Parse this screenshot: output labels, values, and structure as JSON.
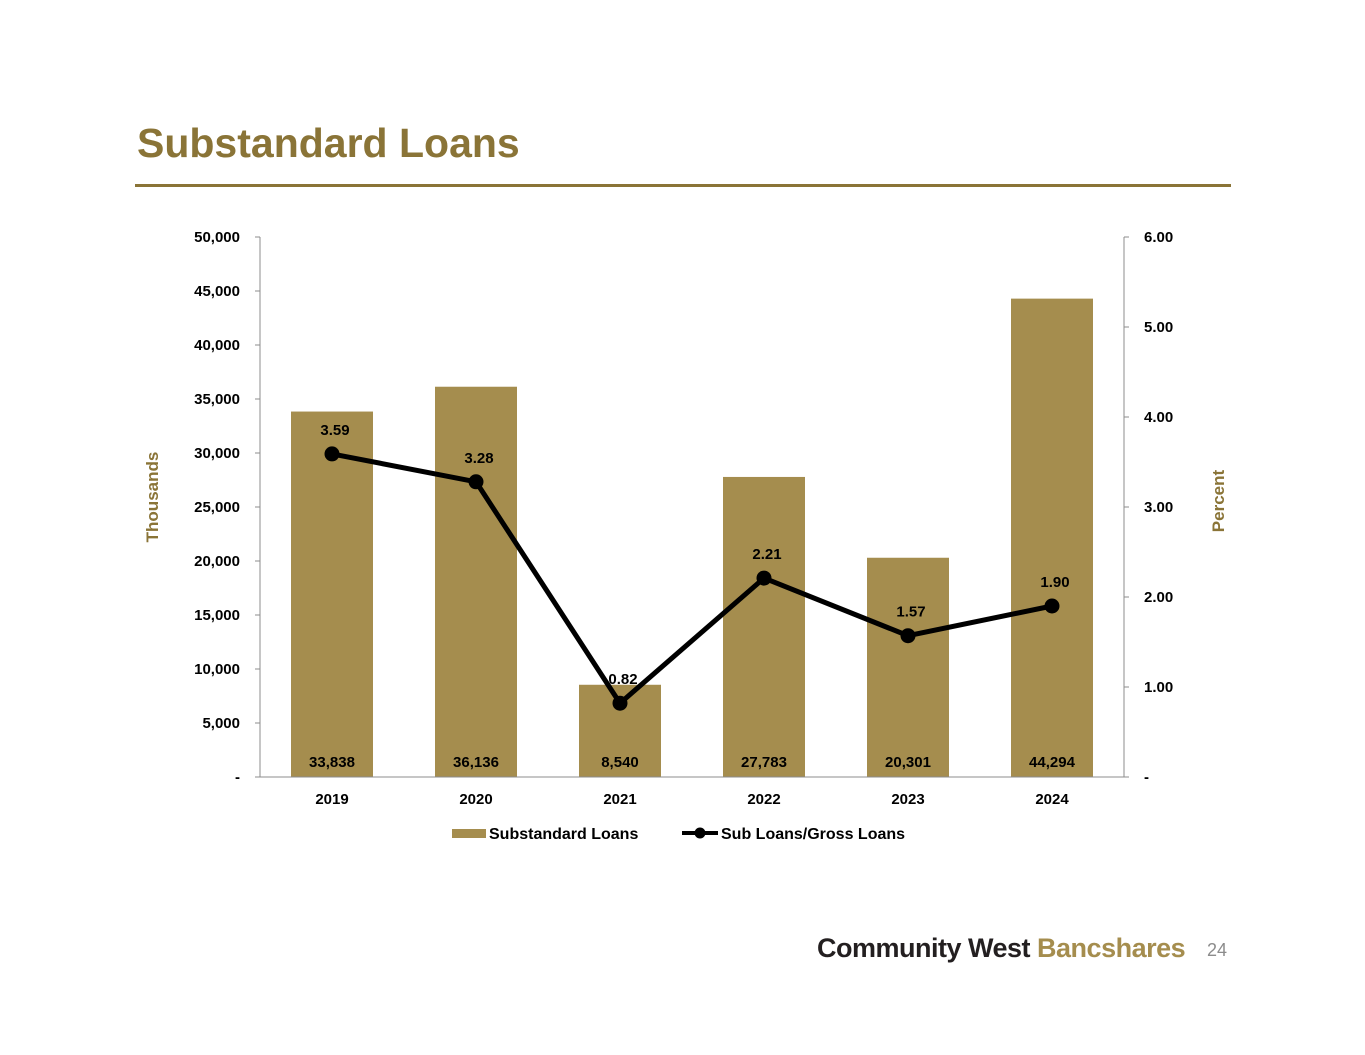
{
  "slide": {
    "title": "Substandard Loans",
    "page_number": "24",
    "logo_text_dark": "Community West",
    "logo_text_gold": "Bancshares"
  },
  "colors": {
    "bar": "#a58d4e",
    "line": "#000000",
    "title": "#8a7437",
    "axis_title": "#8a7437",
    "text": "#000000"
  },
  "chart_data": {
    "type": "bar",
    "categories": [
      "2019",
      "2020",
      "2021",
      "2022",
      "2023",
      "2024"
    ],
    "series": [
      {
        "name": "Substandard Loans",
        "type": "bar",
        "axis": "left",
        "values": [
          33838,
          36136,
          8540,
          27783,
          20301,
          44294
        ],
        "labels": [
          "33,838",
          "36,136",
          "8,540",
          "27,783",
          "20,301",
          "44,294"
        ]
      },
      {
        "name": "Sub Loans/Gross Loans",
        "type": "line",
        "axis": "right",
        "values": [
          3.59,
          3.28,
          0.82,
          2.21,
          1.57,
          1.9
        ],
        "labels": [
          "3.59",
          "3.28",
          "0.82",
          "2.21",
          "1.57",
          "1.90"
        ]
      }
    ],
    "ylabel": "Thousands",
    "y2label": "Percent",
    "ylim": [
      0,
      50000
    ],
    "y2lim": [
      0,
      6
    ],
    "yticks": [
      0,
      5000,
      10000,
      15000,
      20000,
      25000,
      30000,
      35000,
      40000,
      45000,
      50000
    ],
    "ytick_labels": [
      "-",
      "5,000",
      "10,000",
      "15,000",
      "20,000",
      "25,000",
      "30,000",
      "35,000",
      "40,000",
      "45,000",
      "50,000"
    ],
    "y2ticks": [
      0,
      1,
      2,
      3,
      4,
      5,
      6
    ],
    "y2tick_labels": [
      "-",
      "1.00",
      "2.00",
      "3.00",
      "4.00",
      "5.00",
      "6.00"
    ],
    "grid": false,
    "legend": "bottom"
  }
}
